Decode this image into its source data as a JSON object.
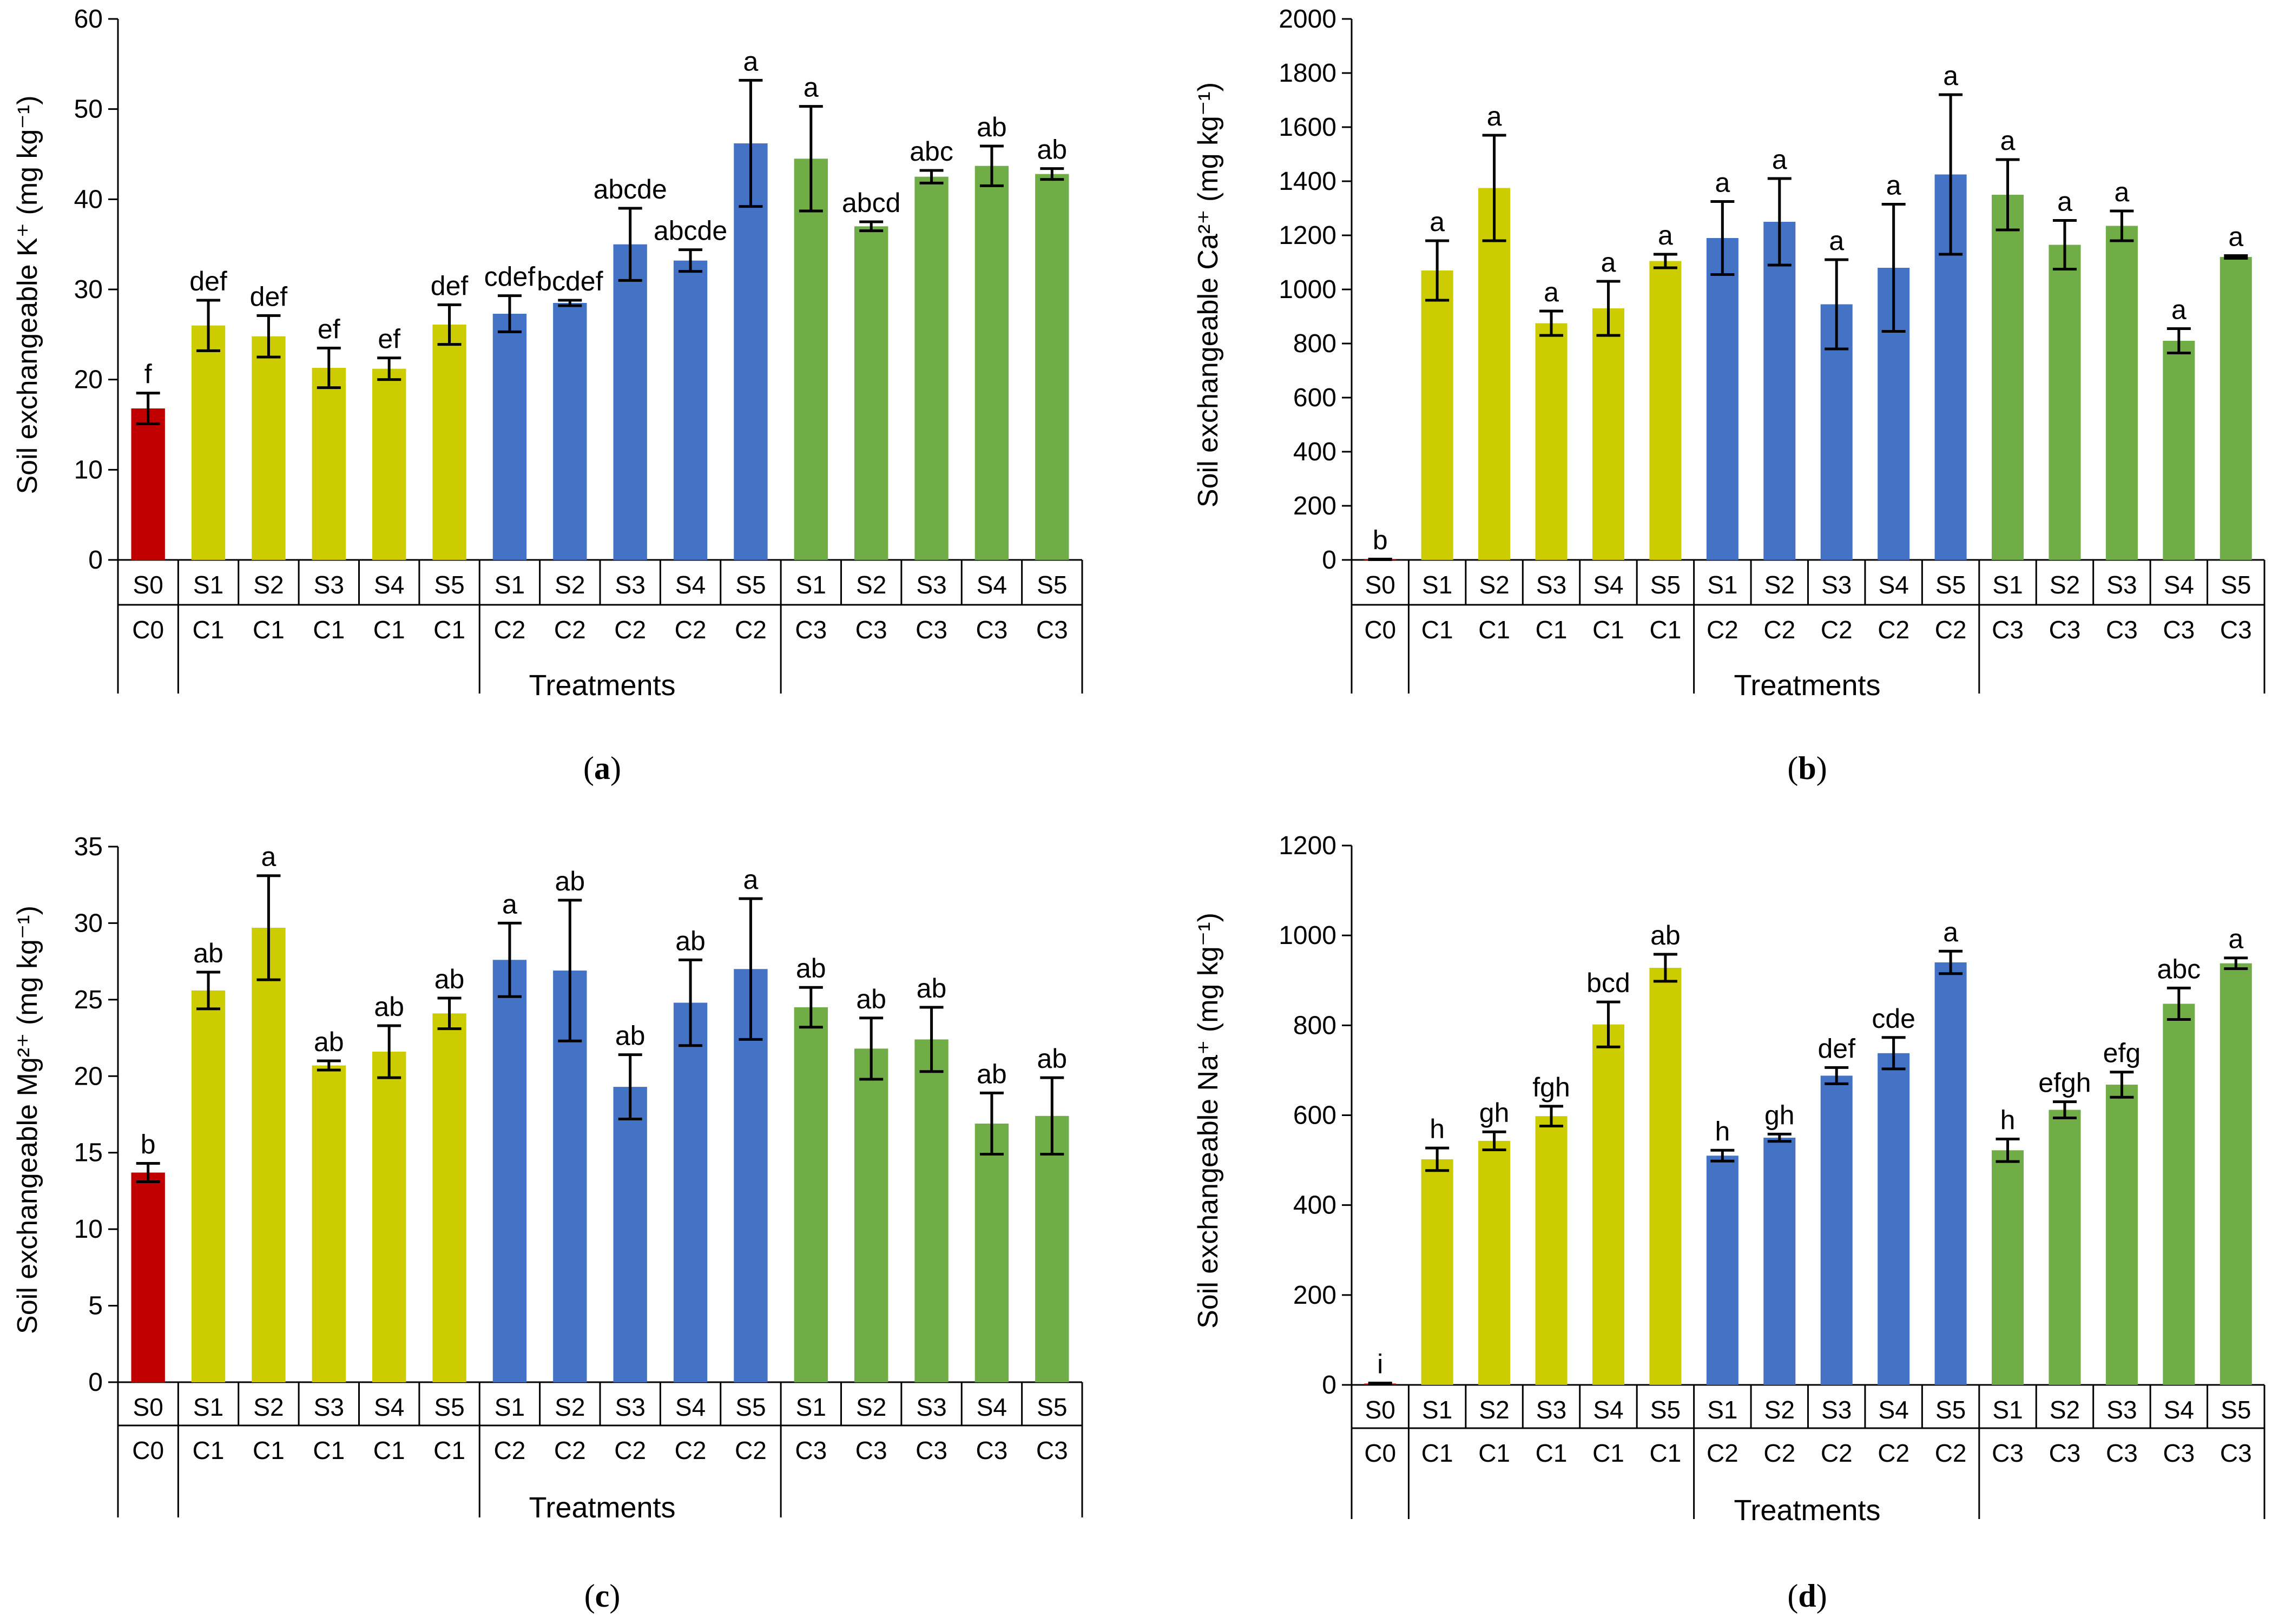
{
  "colors": {
    "C0": "#C00000",
    "C1": "#CCCC00",
    "C2": "#4472C4",
    "C3": "#70AD47",
    "axis": "#000000",
    "error_bar": "#000000"
  },
  "chart_data": [
    {
      "type": "bar",
      "panel_label": "a",
      "title": "",
      "xlabel": "Treatments",
      "ylabel": "Soil exchangeable K⁺ (mg kg⁻¹)",
      "ylim": [
        0,
        60
      ],
      "yticks": [
        0,
        10,
        20,
        30,
        40,
        50,
        60
      ],
      "grid": false,
      "legend": "none",
      "x_levels": {
        "salinity": [
          "S0",
          "S1",
          "S2",
          "S3",
          "S4",
          "S5",
          "S1",
          "S2",
          "S3",
          "S4",
          "S5",
          "S1",
          "S2",
          "S3",
          "S4",
          "S5"
        ],
        "compost": [
          "C0",
          "C1",
          "C1",
          "C1",
          "C1",
          "C1",
          "C2",
          "C2",
          "C2",
          "C2",
          "C2",
          "C3",
          "C3",
          "C3",
          "C3",
          "C3"
        ]
      },
      "values": [
        16.8,
        26.0,
        24.8,
        21.3,
        21.2,
        26.1,
        27.3,
        28.5,
        35.0,
        33.2,
        46.2,
        44.5,
        37.0,
        42.5,
        43.7,
        42.8
      ],
      "errors": [
        1.7,
        2.8,
        2.3,
        2.2,
        1.2,
        2.2,
        2.0,
        0.3,
        4.0,
        1.2,
        7.0,
        5.8,
        0.5,
        0.7,
        2.2,
        0.6
      ],
      "letters": [
        "f",
        "def",
        "def",
        "ef",
        "ef",
        "def",
        "cdef",
        "bcdef",
        "abcde",
        "abcde",
        "a",
        "a",
        "abcd",
        "abc",
        "ab",
        "ab"
      ]
    },
    {
      "type": "bar",
      "panel_label": "b",
      "title": "",
      "xlabel": "Treatments",
      "ylabel": "Soil exchangeable Ca²⁺ (mg kg⁻¹)",
      "ylim": [
        0,
        2000
      ],
      "yticks": [
        0,
        200,
        400,
        600,
        800,
        1000,
        1200,
        1400,
        1600,
        1800,
        2000
      ],
      "grid": false,
      "legend": "none",
      "x_levels": {
        "salinity": [
          "S0",
          "S1",
          "S2",
          "S3",
          "S4",
          "S5",
          "S1",
          "S2",
          "S3",
          "S4",
          "S5",
          "S1",
          "S2",
          "S3",
          "S4",
          "S5"
        ],
        "compost": [
          "C0",
          "C1",
          "C1",
          "C1",
          "C1",
          "C1",
          "C2",
          "C2",
          "C2",
          "C2",
          "C2",
          "C3",
          "C3",
          "C3",
          "C3",
          "C3"
        ]
      },
      "values": [
        2,
        1070,
        1375,
        875,
        930,
        1105,
        1190,
        1250,
        945,
        1080,
        1425,
        1350,
        1165,
        1235,
        810,
        1120
      ],
      "errors": [
        1,
        110,
        195,
        45,
        100,
        25,
        135,
        160,
        165,
        235,
        295,
        130,
        90,
        55,
        45,
        5
      ],
      "letters": [
        "b",
        "a",
        "a",
        "a",
        "a",
        "a",
        "a",
        "a",
        "a",
        "a",
        "a",
        "a",
        "a",
        "a",
        "a",
        "a"
      ]
    },
    {
      "type": "bar",
      "panel_label": "c",
      "title": "",
      "xlabel": "Treatments",
      "ylabel": "Soil exchangeable Mg²⁺ (mg kg⁻¹)",
      "ylim": [
        0,
        35
      ],
      "yticks": [
        0,
        5,
        10,
        15,
        20,
        25,
        30,
        35
      ],
      "grid": false,
      "legend": "none",
      "x_levels": {
        "salinity": [
          "S0",
          "S1",
          "S2",
          "S3",
          "S4",
          "S5",
          "S1",
          "S2",
          "S3",
          "S4",
          "S5",
          "S1",
          "S2",
          "S3",
          "S4",
          "S5"
        ],
        "compost": [
          "C0",
          "C1",
          "C1",
          "C1",
          "C1",
          "C1",
          "C2",
          "C2",
          "C2",
          "C2",
          "C2",
          "C3",
          "C3",
          "C3",
          "C3",
          "C3"
        ]
      },
      "values": [
        13.7,
        25.6,
        29.7,
        20.7,
        21.6,
        24.1,
        27.6,
        26.9,
        19.3,
        24.8,
        27.0,
        24.5,
        21.8,
        22.4,
        16.9,
        17.4
      ],
      "errors": [
        0.6,
        1.2,
        3.4,
        0.3,
        1.7,
        1.0,
        2.4,
        4.6,
        2.1,
        2.8,
        4.6,
        1.3,
        2.0,
        2.1,
        2.0,
        2.5
      ],
      "letters": [
        "b",
        "ab",
        "a",
        "ab",
        "ab",
        "ab",
        "a",
        "ab",
        "ab",
        "ab",
        "a",
        "ab",
        "ab",
        "ab",
        "ab",
        "ab"
      ]
    },
    {
      "type": "bar",
      "panel_label": "d",
      "title": "",
      "xlabel": "Treatments",
      "ylabel": "Soil exchangeable Na⁺ (mg kg⁻¹)",
      "ylim": [
        0,
        1200
      ],
      "yticks": [
        0,
        200,
        400,
        600,
        800,
        1000,
        1200
      ],
      "grid": false,
      "legend": "none",
      "x_levels": {
        "salinity": [
          "S0",
          "S1",
          "S2",
          "S3",
          "S4",
          "S5",
          "S1",
          "S2",
          "S3",
          "S4",
          "S5",
          "S1",
          "S2",
          "S3",
          "S4",
          "S5"
        ],
        "compost": [
          "C0",
          "C1",
          "C1",
          "C1",
          "C1",
          "C1",
          "C2",
          "C2",
          "C2",
          "C2",
          "C2",
          "C3",
          "C3",
          "C3",
          "C3",
          "C3"
        ]
      },
      "values": [
        3,
        502,
        543,
        598,
        802,
        928,
        510,
        550,
        688,
        738,
        940,
        522,
        612,
        668,
        848,
        938
      ],
      "errors": [
        1,
        25,
        20,
        22,
        50,
        30,
        12,
        8,
        18,
        35,
        25,
        25,
        18,
        28,
        35,
        12
      ],
      "letters": [
        "i",
        "h",
        "gh",
        "fgh",
        "bcd",
        "ab",
        "h",
        "gh",
        "def",
        "cde",
        "a",
        "h",
        "efgh",
        "efg",
        "abc",
        "a"
      ]
    }
  ]
}
